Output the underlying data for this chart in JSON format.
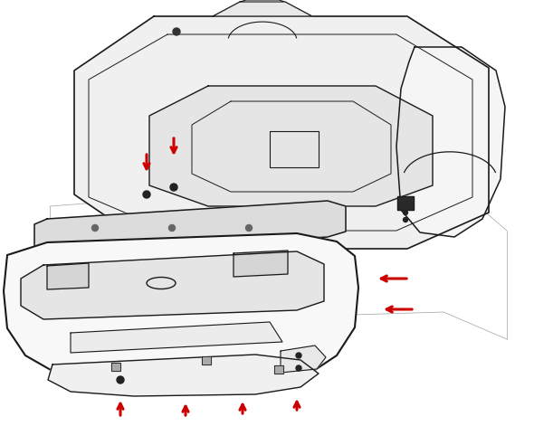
{
  "background_color": "#ffffff",
  "line_color": "#1a1a1a",
  "arrow_color": "#cc0000",
  "fig_width": 5.9,
  "fig_height": 4.71,
  "dpi": 100
}
